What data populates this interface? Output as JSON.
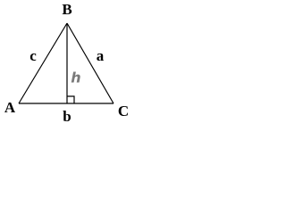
{
  "vertices": [
    "A",
    "B",
    "C"
  ],
  "sides": [
    "a",
    "b",
    "c"
  ],
  "height": "h"
}
